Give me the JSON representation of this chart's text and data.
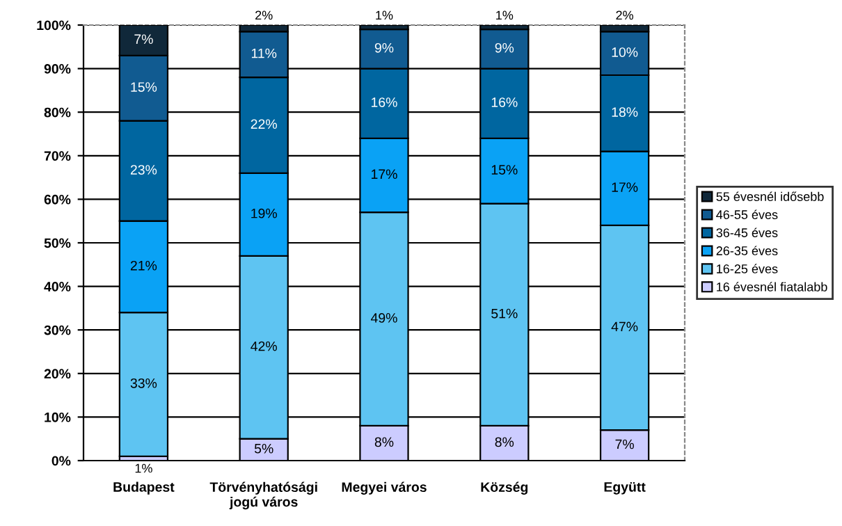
{
  "chart_data": {
    "type": "bar",
    "stacked": true,
    "categories": [
      "Budapest",
      "Törvényhatósági jogú város",
      "Megyei város",
      "Község",
      "Együtt"
    ],
    "series": [
      {
        "name": "16 évesnél fiatalabb",
        "color": "#ccccff",
        "values": [
          1,
          5,
          8,
          8,
          7
        ],
        "value_labels": [
          "1%",
          "5%",
          "8%",
          "8%",
          "7%"
        ]
      },
      {
        "name": "16-25 éves",
        "color": "#5ec4f2",
        "values": [
          33,
          42,
          49,
          51,
          47
        ],
        "value_labels": [
          "33%",
          "42%",
          "49%",
          "51%",
          "47%"
        ]
      },
      {
        "name": "26-35 éves",
        "color": "#0aa2f5",
        "values": [
          21,
          19,
          17,
          15,
          17
        ],
        "value_labels": [
          "21%",
          "19%",
          "17%",
          "15%",
          "17%"
        ]
      },
      {
        "name": "36-45 éves",
        "color": "#0066a0",
        "values": [
          23,
          22,
          16,
          16,
          17.5
        ],
        "value_labels": [
          "23%",
          "22%",
          "16%",
          "16%",
          "18%"
        ]
      },
      {
        "name": "46-55 éves",
        "color": "#115b91",
        "values": [
          15,
          10.5,
          9,
          9,
          10
        ],
        "value_labels": [
          "15%",
          "11%",
          "9%",
          "9%",
          "10%"
        ]
      },
      {
        "name": "55 évesnél idősebb",
        "color": "#10283a",
        "values": [
          7,
          1.5,
          1,
          1,
          1.5
        ],
        "value_labels": [
          "7%",
          "2%",
          "1%",
          "1%",
          "2%"
        ]
      }
    ],
    "ylim": [
      0,
      100
    ],
    "yticks": [
      {
        "value": 0,
        "label": "0%"
      },
      {
        "value": 10,
        "label": "10%"
      },
      {
        "value": 20,
        "label": "20%"
      },
      {
        "value": 30,
        "label": "30%"
      },
      {
        "value": 40,
        "label": "40%"
      },
      {
        "value": 50,
        "label": "50%"
      },
      {
        "value": 60,
        "label": "60%"
      },
      {
        "value": 70,
        "label": "70%"
      },
      {
        "value": 80,
        "label": "80%"
      },
      {
        "value": 90,
        "label": "90%"
      },
      {
        "value": 100,
        "label": "100%"
      }
    ],
    "grid": "y",
    "legend": "right"
  }
}
